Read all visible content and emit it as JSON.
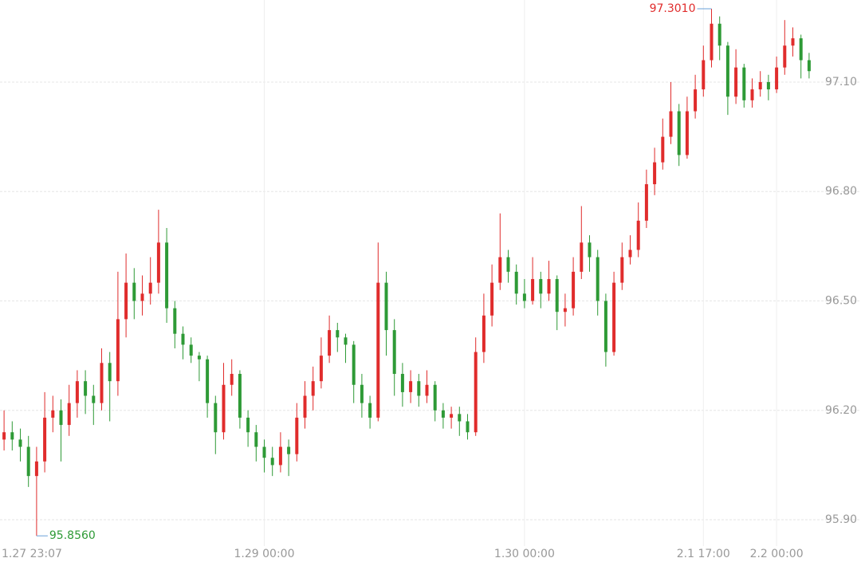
{
  "chart_data": {
    "type": "candlestick",
    "categories": [
      "1.27 23:07",
      null,
      null,
      null,
      null,
      null,
      null,
      null,
      null,
      null,
      null,
      null,
      null,
      null,
      null,
      null,
      null,
      null,
      null,
      null,
      null,
      null,
      null,
      null,
      null,
      null,
      null,
      null,
      null,
      null,
      null,
      null,
      "1.29 00:00",
      null,
      null,
      null,
      null,
      null,
      null,
      null,
      null,
      null,
      null,
      null,
      null,
      null,
      null,
      null,
      null,
      null,
      null,
      null,
      null,
      null,
      null,
      null,
      null,
      null,
      null,
      null,
      null,
      null,
      null,
      null,
      "1.30 00:00",
      null,
      null,
      null,
      null,
      null,
      null,
      null,
      null,
      null,
      null,
      null,
      null,
      null,
      null,
      null,
      null,
      null,
      null,
      null,
      null,
      null,
      "2.1 17:00",
      null,
      null,
      null,
      null,
      null,
      null,
      null,
      null,
      "2.2 00:00",
      null,
      null,
      null,
      null
    ],
    "open": [
      96.12,
      96.14,
      96.12,
      96.1,
      96.02,
      96.06,
      96.18,
      96.2,
      96.16,
      96.22,
      96.28,
      96.24,
      96.22,
      96.33,
      96.28,
      96.45,
      96.55,
      96.5,
      96.52,
      96.55,
      96.66,
      96.48,
      96.41,
      96.38,
      96.35,
      96.34,
      96.22,
      96.14,
      96.27,
      96.3,
      96.18,
      96.14,
      96.1,
      96.07,
      96.05,
      96.1,
      96.08,
      96.18,
      96.24,
      96.28,
      96.35,
      96.42,
      96.4,
      96.38,
      96.27,
      96.22,
      96.18,
      96.55,
      96.42,
      96.3,
      96.25,
      96.28,
      96.24,
      96.27,
      96.2,
      96.18,
      96.19,
      96.17,
      96.14,
      96.36,
      96.46,
      96.55,
      96.62,
      96.58,
      96.52,
      96.5,
      96.56,
      96.52,
      96.56,
      96.47,
      96.48,
      96.58,
      96.66,
      96.62,
      96.5,
      96.36,
      96.55,
      96.62,
      96.64,
      96.72,
      96.82,
      96.88,
      96.95,
      97.02,
      96.9,
      97.02,
      97.08,
      97.16,
      97.26,
      97.2,
      97.06,
      97.14,
      97.05,
      97.08,
      97.1,
      97.08,
      97.14,
      97.2,
      97.22,
      97.16
    ],
    "high": [
      96.2,
      96.17,
      96.15,
      96.13,
      96.1,
      96.25,
      96.24,
      96.23,
      96.27,
      96.31,
      96.31,
      96.27,
      96.37,
      96.36,
      96.58,
      96.63,
      96.59,
      96.57,
      96.62,
      96.75,
      96.7,
      96.5,
      96.43,
      96.4,
      96.36,
      96.35,
      96.24,
      96.33,
      96.34,
      96.31,
      96.2,
      96.16,
      96.12,
      96.1,
      96.14,
      96.12,
      96.22,
      96.28,
      96.32,
      96.4,
      96.46,
      96.44,
      96.41,
      96.39,
      96.3,
      96.24,
      96.66,
      96.58,
      96.45,
      96.33,
      96.31,
      96.3,
      96.31,
      96.28,
      96.22,
      96.21,
      96.21,
      96.19,
      96.4,
      96.52,
      96.6,
      96.74,
      96.64,
      96.6,
      96.56,
      96.62,
      96.58,
      96.61,
      96.57,
      96.52,
      96.62,
      96.76,
      96.68,
      96.64,
      96.52,
      96.58,
      96.66,
      96.68,
      96.77,
      96.86,
      96.92,
      97.0,
      97.1,
      97.04,
      97.06,
      97.12,
      97.2,
      97.301,
      97.28,
      97.21,
      97.19,
      97.15,
      97.11,
      97.13,
      97.12,
      97.17,
      97.27,
      97.25,
      97.23,
      97.18
    ],
    "low": [
      96.09,
      96.09,
      96.06,
      95.99,
      95.856,
      96.03,
      96.14,
      96.06,
      96.13,
      96.18,
      96.19,
      96.16,
      96.2,
      96.17,
      96.24,
      96.4,
      96.45,
      96.46,
      96.49,
      96.52,
      96.44,
      96.37,
      96.34,
      96.33,
      96.28,
      96.18,
      96.08,
      96.12,
      96.24,
      96.15,
      96.1,
      96.06,
      96.03,
      96.02,
      96.03,
      96.02,
      96.06,
      96.15,
      96.2,
      96.26,
      96.33,
      96.36,
      96.33,
      96.22,
      96.18,
      96.15,
      96.17,
      96.35,
      96.24,
      96.21,
      96.22,
      96.21,
      96.22,
      96.17,
      96.15,
      96.15,
      96.13,
      96.12,
      96.13,
      96.33,
      96.43,
      96.53,
      96.55,
      96.49,
      96.48,
      96.49,
      96.48,
      96.5,
      96.42,
      96.43,
      96.46,
      96.56,
      96.58,
      96.46,
      96.32,
      96.35,
      96.53,
      96.6,
      96.62,
      96.7,
      96.79,
      96.86,
      96.93,
      96.87,
      96.89,
      97.0,
      97.06,
      97.14,
      97.16,
      97.01,
      97.04,
      97.03,
      97.03,
      97.06,
      97.05,
      97.07,
      97.12,
      97.17,
      97.11,
      97.11
    ],
    "close": [
      96.14,
      96.12,
      96.1,
      96.02,
      96.06,
      96.18,
      96.2,
      96.16,
      96.22,
      96.28,
      96.24,
      96.22,
      96.33,
      96.28,
      96.45,
      96.55,
      96.5,
      96.52,
      96.55,
      96.66,
      96.48,
      96.41,
      96.38,
      96.35,
      96.34,
      96.22,
      96.14,
      96.27,
      96.3,
      96.18,
      96.14,
      96.1,
      96.07,
      96.05,
      96.1,
      96.08,
      96.18,
      96.24,
      96.28,
      96.35,
      96.42,
      96.4,
      96.38,
      96.27,
      96.22,
      96.18,
      96.55,
      96.42,
      96.3,
      96.25,
      96.28,
      96.24,
      96.27,
      96.2,
      96.18,
      96.19,
      96.17,
      96.14,
      96.36,
      96.46,
      96.55,
      96.62,
      96.58,
      96.52,
      96.5,
      96.56,
      96.52,
      96.56,
      96.47,
      96.48,
      96.58,
      96.66,
      96.62,
      96.5,
      96.36,
      96.55,
      96.62,
      96.64,
      96.72,
      96.82,
      96.88,
      96.95,
      97.02,
      96.9,
      97.02,
      97.08,
      97.16,
      97.26,
      97.2,
      97.06,
      97.14,
      97.05,
      97.08,
      97.1,
      97.08,
      97.14,
      97.2,
      97.22,
      97.16,
      97.13
    ],
    "up_color": "#e02c2c",
    "down_color": "#2e9a36",
    "high_label": "97.3010",
    "low_label": "95.8560",
    "ylim": [
      95.828,
      97.325
    ],
    "yticks": [
      {
        "value": 95.9,
        "label": "95.90"
      },
      {
        "value": 96.2,
        "label": "96.20"
      },
      {
        "value": 96.5,
        "label": "96.50"
      },
      {
        "value": 96.8,
        "label": "96.80"
      },
      {
        "value": 97.1,
        "label": "97.10"
      }
    ],
    "grid": true
  }
}
